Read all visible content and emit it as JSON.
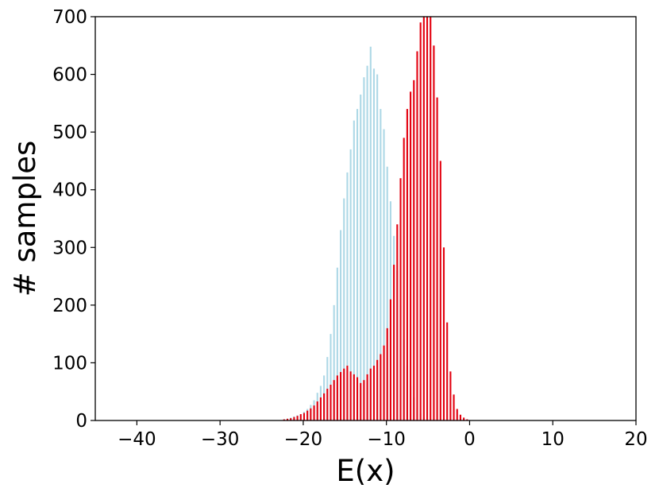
{
  "chart_data": {
    "type": "bar",
    "title": "",
    "xlabel": "E(x)",
    "ylabel": "# samples",
    "xlim": [
      -45,
      20
    ],
    "ylim": [
      0,
      700
    ],
    "grid": false,
    "bar_width": 0.2,
    "x_ticks": [
      -40,
      -30,
      -20,
      -10,
      0,
      10,
      20
    ],
    "x_tick_labels": [
      "−40",
      "−30",
      "−20",
      "−10",
      "0",
      "10",
      "20"
    ],
    "y_ticks": [
      0,
      100,
      200,
      300,
      400,
      500,
      600,
      700
    ],
    "y_tick_labels": [
      "0",
      "100",
      "200",
      "300",
      "400",
      "500",
      "600",
      "700"
    ],
    "series": [
      {
        "color": "#add8e6",
        "points": [
          {
            "x": -22.3,
            "y": 2
          },
          {
            "x": -21.9,
            "y": 3
          },
          {
            "x": -21.5,
            "y": 5
          },
          {
            "x": -21.1,
            "y": 7
          },
          {
            "x": -20.7,
            "y": 9
          },
          {
            "x": -20.3,
            "y": 11
          },
          {
            "x": -19.9,
            "y": 15
          },
          {
            "x": -19.5,
            "y": 20
          },
          {
            "x": -19.1,
            "y": 27
          },
          {
            "x": -18.7,
            "y": 35
          },
          {
            "x": -18.3,
            "y": 48
          },
          {
            "x": -17.9,
            "y": 60
          },
          {
            "x": -17.5,
            "y": 78
          },
          {
            "x": -17.1,
            "y": 110
          },
          {
            "x": -16.7,
            "y": 150
          },
          {
            "x": -16.3,
            "y": 200
          },
          {
            "x": -15.9,
            "y": 265
          },
          {
            "x": -15.5,
            "y": 330
          },
          {
            "x": -15.1,
            "y": 385
          },
          {
            "x": -14.7,
            "y": 430
          },
          {
            "x": -14.3,
            "y": 470
          },
          {
            "x": -13.9,
            "y": 520
          },
          {
            "x": -13.5,
            "y": 540
          },
          {
            "x": -13.1,
            "y": 565
          },
          {
            "x": -12.7,
            "y": 595
          },
          {
            "x": -12.3,
            "y": 615
          },
          {
            "x": -11.9,
            "y": 648
          },
          {
            "x": -11.5,
            "y": 610
          },
          {
            "x": -11.1,
            "y": 600
          },
          {
            "x": -10.7,
            "y": 540
          },
          {
            "x": -10.3,
            "y": 505
          },
          {
            "x": -9.9,
            "y": 440
          },
          {
            "x": -9.5,
            "y": 380
          },
          {
            "x": -9.1,
            "y": 320
          },
          {
            "x": -8.7,
            "y": 260
          },
          {
            "x": -8.3,
            "y": 200
          },
          {
            "x": -7.9,
            "y": 140
          },
          {
            "x": -7.5,
            "y": 95
          },
          {
            "x": -7.1,
            "y": 60
          },
          {
            "x": -6.7,
            "y": 40
          },
          {
            "x": -6.3,
            "y": 22
          },
          {
            "x": -5.9,
            "y": 12
          },
          {
            "x": -5.5,
            "y": 6
          },
          {
            "x": -5.1,
            "y": 3
          }
        ]
      },
      {
        "color": "#e3000f",
        "points": [
          {
            "x": -22.3,
            "y": 2
          },
          {
            "x": -21.9,
            "y": 3
          },
          {
            "x": -21.5,
            "y": 4
          },
          {
            "x": -21.1,
            "y": 6
          },
          {
            "x": -20.7,
            "y": 8
          },
          {
            "x": -20.3,
            "y": 11
          },
          {
            "x": -19.9,
            "y": 13
          },
          {
            "x": -19.5,
            "y": 17
          },
          {
            "x": -19.1,
            "y": 21
          },
          {
            "x": -18.7,
            "y": 26
          },
          {
            "x": -18.3,
            "y": 33
          },
          {
            "x": -17.9,
            "y": 40
          },
          {
            "x": -17.5,
            "y": 47
          },
          {
            "x": -17.1,
            "y": 55
          },
          {
            "x": -16.7,
            "y": 62
          },
          {
            "x": -16.3,
            "y": 70
          },
          {
            "x": -15.9,
            "y": 78
          },
          {
            "x": -15.5,
            "y": 84
          },
          {
            "x": -15.1,
            "y": 90
          },
          {
            "x": -14.7,
            "y": 95
          },
          {
            "x": -14.3,
            "y": 85
          },
          {
            "x": -13.9,
            "y": 80
          },
          {
            "x": -13.5,
            "y": 75
          },
          {
            "x": -13.1,
            "y": 65
          },
          {
            "x": -12.7,
            "y": 70
          },
          {
            "x": -12.3,
            "y": 80
          },
          {
            "x": -11.9,
            "y": 90
          },
          {
            "x": -11.5,
            "y": 95
          },
          {
            "x": -11.1,
            "y": 105
          },
          {
            "x": -10.7,
            "y": 115
          },
          {
            "x": -10.3,
            "y": 130
          },
          {
            "x": -9.9,
            "y": 160
          },
          {
            "x": -9.5,
            "y": 210
          },
          {
            "x": -9.1,
            "y": 270
          },
          {
            "x": -8.7,
            "y": 340
          },
          {
            "x": -8.3,
            "y": 420
          },
          {
            "x": -7.9,
            "y": 490
          },
          {
            "x": -7.5,
            "y": 540
          },
          {
            "x": -7.1,
            "y": 570
          },
          {
            "x": -6.7,
            "y": 590
          },
          {
            "x": -6.3,
            "y": 640
          },
          {
            "x": -5.9,
            "y": 690
          },
          {
            "x": -5.5,
            "y": 710
          },
          {
            "x": -5.1,
            "y": 720
          },
          {
            "x": -4.7,
            "y": 710
          },
          {
            "x": -4.3,
            "y": 650
          },
          {
            "x": -3.9,
            "y": 560
          },
          {
            "x": -3.5,
            "y": 450
          },
          {
            "x": -3.1,
            "y": 300
          },
          {
            "x": -2.7,
            "y": 170
          },
          {
            "x": -2.3,
            "y": 85
          },
          {
            "x": -1.9,
            "y": 45
          },
          {
            "x": -1.5,
            "y": 20
          },
          {
            "x": -1.1,
            "y": 10
          },
          {
            "x": -0.7,
            "y": 5
          },
          {
            "x": -0.3,
            "y": 2
          }
        ]
      }
    ]
  }
}
